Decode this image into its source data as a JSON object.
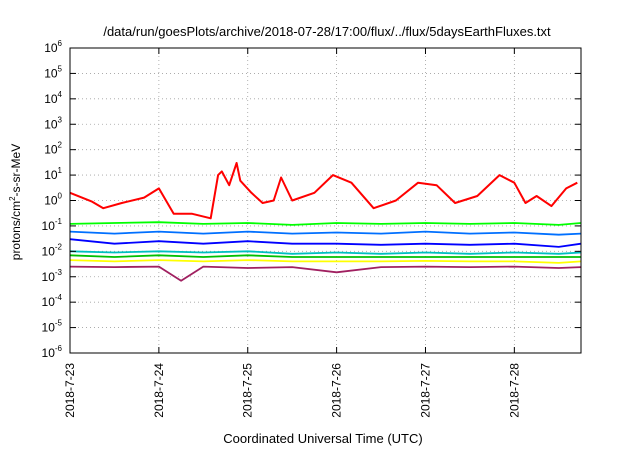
{
  "chart_data": {
    "type": "line",
    "title": "/data/run/goesPlots/archive/2018-07-28/17:00/flux/../flux/5daysEarthFluxes.txt",
    "xlabel": "Coordinated Universal Time (UTC)",
    "ylabel": {
      "base": "protons/cm",
      "sup": "2",
      "rest": "-s-sr-MeV"
    },
    "x_range": [
      "2018-07-23T00:00",
      "2018-07-28T18:00"
    ],
    "x_ticks": [
      "2018-7-23",
      "2018-7-24",
      "2018-7-25",
      "2018-7-26",
      "2018-7-27",
      "2018-7-28"
    ],
    "y_scale": "log",
    "ylim": [
      1e-06,
      1000000.0
    ],
    "y_ticks": [
      {
        "base": "10",
        "exp": "-6"
      },
      {
        "base": "10",
        "exp": "-5"
      },
      {
        "base": "10",
        "exp": "-4"
      },
      {
        "base": "10",
        "exp": "-3"
      },
      {
        "base": "10",
        "exp": "-2"
      },
      {
        "base": "10",
        "exp": "-1"
      },
      {
        "base": "10",
        "exp": "0"
      },
      {
        "base": "10",
        "exp": "1"
      },
      {
        "base": "10",
        "exp": "2"
      },
      {
        "base": "10",
        "exp": "3"
      },
      {
        "base": "10",
        "exp": "4"
      },
      {
        "base": "10",
        "exp": "5"
      },
      {
        "base": "10",
        "exp": "6"
      }
    ],
    "grid": true,
    "legend": "none",
    "series": [
      {
        "color": "#ff0000",
        "x": [
          "2018-07-23T00:00",
          "2018-07-23T06:00",
          "2018-07-23T09:00",
          "2018-07-23T14:00",
          "2018-07-23T20:00",
          "2018-07-24T00:00",
          "2018-07-24T04:00",
          "2018-07-24T09:00",
          "2018-07-24T14:00",
          "2018-07-24T16:00",
          "2018-07-24T17:00",
          "2018-07-24T19:00",
          "2018-07-24T21:00",
          "2018-07-24T22:00",
          "2018-07-25T01:00",
          "2018-07-25T04:00",
          "2018-07-25T07:00",
          "2018-07-25T09:00",
          "2018-07-25T12:00",
          "2018-07-25T18:00",
          "2018-07-25T23:00",
          "2018-07-26T04:00",
          "2018-07-26T10:00",
          "2018-07-26T16:00",
          "2018-07-26T22:00",
          "2018-07-27T03:00",
          "2018-07-27T08:00",
          "2018-07-27T14:00",
          "2018-07-27T20:00",
          "2018-07-28T00:00",
          "2018-07-28T03:00",
          "2018-07-28T06:00",
          "2018-07-28T10:00",
          "2018-07-28T14:00",
          "2018-07-28T17:00"
        ],
        "values": [
          2.0,
          0.9,
          0.5,
          0.8,
          1.3,
          3.0,
          0.3,
          0.3,
          0.2,
          10,
          14,
          4,
          30,
          6,
          2,
          0.8,
          1.0,
          8,
          1.0,
          2,
          10,
          5,
          0.5,
          1.0,
          5,
          4,
          0.8,
          1.5,
          10,
          5,
          0.8,
          1.5,
          0.6,
          3,
          5
        ]
      },
      {
        "color": "#00ff00",
        "x": [
          "2018-07-23T00:00",
          "2018-07-23T12:00",
          "2018-07-24T00:00",
          "2018-07-24T12:00",
          "2018-07-25T00:00",
          "2018-07-25T12:00",
          "2018-07-26T00:00",
          "2018-07-26T12:00",
          "2018-07-27T00:00",
          "2018-07-27T12:00",
          "2018-07-28T00:00",
          "2018-07-28T12:00",
          "2018-07-28T18:00"
        ],
        "values": [
          0.12,
          0.13,
          0.14,
          0.12,
          0.13,
          0.11,
          0.13,
          0.12,
          0.13,
          0.12,
          0.13,
          0.11,
          0.13
        ]
      },
      {
        "color": "#0070ff",
        "x": [
          "2018-07-23T00:00",
          "2018-07-23T12:00",
          "2018-07-24T00:00",
          "2018-07-24T12:00",
          "2018-07-25T00:00",
          "2018-07-25T12:00",
          "2018-07-26T00:00",
          "2018-07-26T12:00",
          "2018-07-27T00:00",
          "2018-07-27T12:00",
          "2018-07-28T00:00",
          "2018-07-28T12:00",
          "2018-07-28T18:00"
        ],
        "values": [
          0.06,
          0.05,
          0.06,
          0.05,
          0.06,
          0.05,
          0.055,
          0.05,
          0.06,
          0.05,
          0.055,
          0.045,
          0.05
        ]
      },
      {
        "color": "#0000ff",
        "x": [
          "2018-07-23T00:00",
          "2018-07-23T12:00",
          "2018-07-24T00:00",
          "2018-07-24T12:00",
          "2018-07-25T00:00",
          "2018-07-25T12:00",
          "2018-07-26T00:00",
          "2018-07-26T12:00",
          "2018-07-27T00:00",
          "2018-07-27T12:00",
          "2018-07-28T00:00",
          "2018-07-28T12:00",
          "2018-07-28T18:00"
        ],
        "values": [
          0.03,
          0.02,
          0.025,
          0.02,
          0.025,
          0.02,
          0.02,
          0.018,
          0.02,
          0.018,
          0.02,
          0.015,
          0.02
        ]
      },
      {
        "color": "#00c0c0",
        "x": [
          "2018-07-23T00:00",
          "2018-07-23T12:00",
          "2018-07-24T00:00",
          "2018-07-24T12:00",
          "2018-07-25T00:00",
          "2018-07-25T12:00",
          "2018-07-26T00:00",
          "2018-07-26T12:00",
          "2018-07-27T00:00",
          "2018-07-27T12:00",
          "2018-07-28T00:00",
          "2018-07-28T12:00",
          "2018-07-28T18:00"
        ],
        "values": [
          0.01,
          0.009,
          0.01,
          0.009,
          0.01,
          0.008,
          0.009,
          0.008,
          0.009,
          0.008,
          0.009,
          0.008,
          0.009
        ]
      },
      {
        "color": "#00c000",
        "x": [
          "2018-07-23T00:00",
          "2018-07-23T12:00",
          "2018-07-24T00:00",
          "2018-07-24T12:00",
          "2018-07-25T00:00",
          "2018-07-25T12:00",
          "2018-07-26T00:00",
          "2018-07-26T12:00",
          "2018-07-27T00:00",
          "2018-07-27T12:00",
          "2018-07-28T00:00",
          "2018-07-28T12:00",
          "2018-07-28T18:00"
        ],
        "values": [
          0.007,
          0.006,
          0.007,
          0.006,
          0.007,
          0.006,
          0.006,
          0.006,
          0.006,
          0.006,
          0.006,
          0.006,
          0.006
        ]
      },
      {
        "color": "#ffff00",
        "x": [
          "2018-07-23T00:00",
          "2018-07-23T12:00",
          "2018-07-24T00:00",
          "2018-07-24T12:00",
          "2018-07-25T00:00",
          "2018-07-25T12:00",
          "2018-07-26T00:00",
          "2018-07-26T12:00",
          "2018-07-27T00:00",
          "2018-07-27T12:00",
          "2018-07-28T00:00",
          "2018-07-28T12:00",
          "2018-07-28T18:00"
        ],
        "values": [
          0.0045,
          0.004,
          0.0045,
          0.004,
          0.0045,
          0.004,
          0.004,
          0.004,
          0.0042,
          0.004,
          0.004,
          0.0035,
          0.004
        ]
      },
      {
        "color": "#a02060",
        "x": [
          "2018-07-23T00:00",
          "2018-07-23T12:00",
          "2018-07-24T00:00",
          "2018-07-24T06:00",
          "2018-07-24T12:00",
          "2018-07-25T00:00",
          "2018-07-25T12:00",
          "2018-07-26T00:00",
          "2018-07-26T12:00",
          "2018-07-27T00:00",
          "2018-07-27T12:00",
          "2018-07-28T00:00",
          "2018-07-28T12:00",
          "2018-07-28T18:00"
        ],
        "values": [
          0.0025,
          0.0024,
          0.0025,
          0.0007,
          0.0025,
          0.0022,
          0.0024,
          0.0015,
          0.0024,
          0.0025,
          0.0024,
          0.0025,
          0.0022,
          0.0024
        ]
      }
    ]
  }
}
